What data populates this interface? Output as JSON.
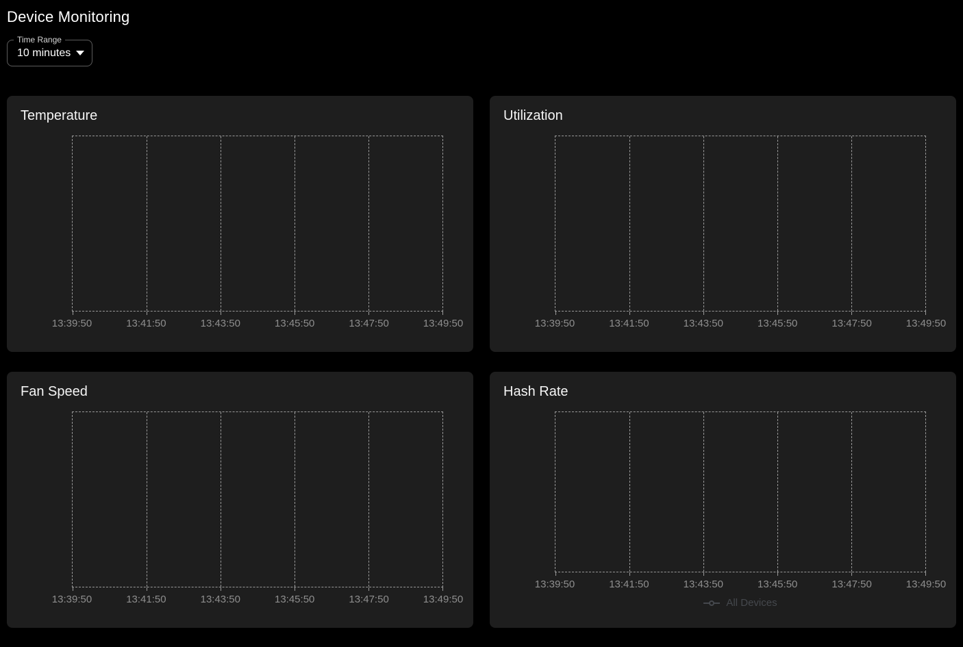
{
  "header": {
    "title": "Device Monitoring"
  },
  "controls": {
    "time_range": {
      "label": "Time Range",
      "value": "10 minutes",
      "icon": "caret-down-icon"
    }
  },
  "colors": {
    "page_bg": "#000000",
    "panel_bg": "#1e1e1e",
    "grid_line": "#9a9a9a",
    "axis_label": "#8e8e8e",
    "panel_title": "#f5f5f5",
    "legend_dimmed": "#45484d",
    "select_border": "#5c5c5c",
    "select_label": "#d6d6d6",
    "select_value": "#ffffff"
  },
  "chart_data": [
    {
      "type": "line",
      "title": "Temperature",
      "x_ticks": [
        "13:39:50",
        "13:41:50",
        "13:43:50",
        "13:45:50",
        "13:47:50",
        "13:49:50"
      ],
      "series": [],
      "legend": null,
      "grid": "vertical-dashed",
      "y_ticks": []
    },
    {
      "type": "line",
      "title": "Utilization",
      "x_ticks": [
        "13:39:50",
        "13:41:50",
        "13:43:50",
        "13:45:50",
        "13:47:50",
        "13:49:50"
      ],
      "series": [],
      "legend": null,
      "grid": "vertical-dashed",
      "y_ticks": []
    },
    {
      "type": "line",
      "title": "Fan Speed",
      "x_ticks": [
        "13:39:50",
        "13:41:50",
        "13:43:50",
        "13:45:50",
        "13:47:50",
        "13:49:50"
      ],
      "series": [],
      "legend": null,
      "grid": "vertical-dashed",
      "y_ticks": []
    },
    {
      "type": "line",
      "title": "Hash Rate",
      "x_ticks": [
        "13:39:50",
        "13:41:50",
        "13:43:50",
        "13:45:50",
        "13:47:50",
        "13:49:50"
      ],
      "series": [],
      "legend": [
        {
          "label": "All Devices",
          "dimmed": true
        }
      ],
      "legend_position": "bottom",
      "grid": "vertical-dashed",
      "y_ticks": []
    }
  ]
}
